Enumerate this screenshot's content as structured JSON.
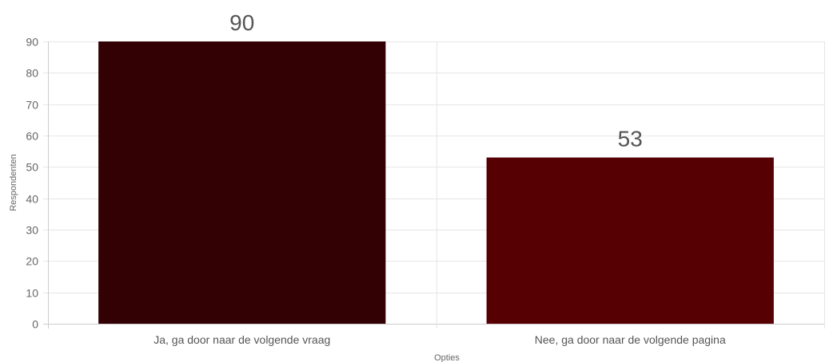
{
  "chart_data": {
    "type": "bar",
    "categories": [
      "Ja, ga door naar de volgende vraag",
      "Nee, ga door naar de volgende pagina"
    ],
    "values": [
      90,
      53
    ],
    "data_labels": [
      "90",
      "53"
    ],
    "colors": [
      "#330004",
      "#570004"
    ],
    "xlabel": "Opties",
    "ylabel": "Respondenten",
    "ylim": [
      0,
      90
    ],
    "yticks": [
      0,
      10,
      20,
      30,
      40,
      50,
      60,
      70,
      80,
      90
    ],
    "grid": true,
    "grid_color": "#e6e6e6",
    "axis_color": "#cccccc"
  }
}
